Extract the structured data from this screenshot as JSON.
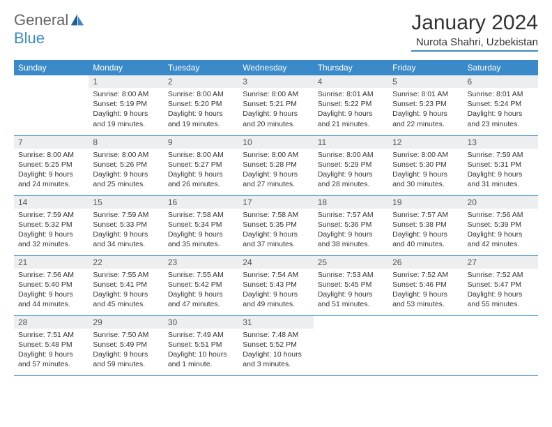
{
  "logo": {
    "text1": "General",
    "text2": "Blue"
  },
  "title": "January 2024",
  "location": "Nurota Shahri, Uzbekistan",
  "colors": {
    "header_bg": "#3a8ac9",
    "header_fg": "#ffffff",
    "daynum_bg": "#eceeef",
    "rule": "#3a8ac9",
    "logo_gray": "#666666"
  },
  "weekdays": [
    "Sunday",
    "Monday",
    "Tuesday",
    "Wednesday",
    "Thursday",
    "Friday",
    "Saturday"
  ],
  "weeks": [
    [
      null,
      {
        "n": "1",
        "sr": "8:00 AM",
        "ss": "5:19 PM",
        "dl": "9 hours and 19 minutes."
      },
      {
        "n": "2",
        "sr": "8:00 AM",
        "ss": "5:20 PM",
        "dl": "9 hours and 19 minutes."
      },
      {
        "n": "3",
        "sr": "8:00 AM",
        "ss": "5:21 PM",
        "dl": "9 hours and 20 minutes."
      },
      {
        "n": "4",
        "sr": "8:01 AM",
        "ss": "5:22 PM",
        "dl": "9 hours and 21 minutes."
      },
      {
        "n": "5",
        "sr": "8:01 AM",
        "ss": "5:23 PM",
        "dl": "9 hours and 22 minutes."
      },
      {
        "n": "6",
        "sr": "8:01 AM",
        "ss": "5:24 PM",
        "dl": "9 hours and 23 minutes."
      }
    ],
    [
      {
        "n": "7",
        "sr": "8:00 AM",
        "ss": "5:25 PM",
        "dl": "9 hours and 24 minutes."
      },
      {
        "n": "8",
        "sr": "8:00 AM",
        "ss": "5:26 PM",
        "dl": "9 hours and 25 minutes."
      },
      {
        "n": "9",
        "sr": "8:00 AM",
        "ss": "5:27 PM",
        "dl": "9 hours and 26 minutes."
      },
      {
        "n": "10",
        "sr": "8:00 AM",
        "ss": "5:28 PM",
        "dl": "9 hours and 27 minutes."
      },
      {
        "n": "11",
        "sr": "8:00 AM",
        "ss": "5:29 PM",
        "dl": "9 hours and 28 minutes."
      },
      {
        "n": "12",
        "sr": "8:00 AM",
        "ss": "5:30 PM",
        "dl": "9 hours and 30 minutes."
      },
      {
        "n": "13",
        "sr": "7:59 AM",
        "ss": "5:31 PM",
        "dl": "9 hours and 31 minutes."
      }
    ],
    [
      {
        "n": "14",
        "sr": "7:59 AM",
        "ss": "5:32 PM",
        "dl": "9 hours and 32 minutes."
      },
      {
        "n": "15",
        "sr": "7:59 AM",
        "ss": "5:33 PM",
        "dl": "9 hours and 34 minutes."
      },
      {
        "n": "16",
        "sr": "7:58 AM",
        "ss": "5:34 PM",
        "dl": "9 hours and 35 minutes."
      },
      {
        "n": "17",
        "sr": "7:58 AM",
        "ss": "5:35 PM",
        "dl": "9 hours and 37 minutes."
      },
      {
        "n": "18",
        "sr": "7:57 AM",
        "ss": "5:36 PM",
        "dl": "9 hours and 38 minutes."
      },
      {
        "n": "19",
        "sr": "7:57 AM",
        "ss": "5:38 PM",
        "dl": "9 hours and 40 minutes."
      },
      {
        "n": "20",
        "sr": "7:56 AM",
        "ss": "5:39 PM",
        "dl": "9 hours and 42 minutes."
      }
    ],
    [
      {
        "n": "21",
        "sr": "7:56 AM",
        "ss": "5:40 PM",
        "dl": "9 hours and 44 minutes."
      },
      {
        "n": "22",
        "sr": "7:55 AM",
        "ss": "5:41 PM",
        "dl": "9 hours and 45 minutes."
      },
      {
        "n": "23",
        "sr": "7:55 AM",
        "ss": "5:42 PM",
        "dl": "9 hours and 47 minutes."
      },
      {
        "n": "24",
        "sr": "7:54 AM",
        "ss": "5:43 PM",
        "dl": "9 hours and 49 minutes."
      },
      {
        "n": "25",
        "sr": "7:53 AM",
        "ss": "5:45 PM",
        "dl": "9 hours and 51 minutes."
      },
      {
        "n": "26",
        "sr": "7:52 AM",
        "ss": "5:46 PM",
        "dl": "9 hours and 53 minutes."
      },
      {
        "n": "27",
        "sr": "7:52 AM",
        "ss": "5:47 PM",
        "dl": "9 hours and 55 minutes."
      }
    ],
    [
      {
        "n": "28",
        "sr": "7:51 AM",
        "ss": "5:48 PM",
        "dl": "9 hours and 57 minutes."
      },
      {
        "n": "29",
        "sr": "7:50 AM",
        "ss": "5:49 PM",
        "dl": "9 hours and 59 minutes."
      },
      {
        "n": "30",
        "sr": "7:49 AM",
        "ss": "5:51 PM",
        "dl": "10 hours and 1 minute."
      },
      {
        "n": "31",
        "sr": "7:48 AM",
        "ss": "5:52 PM",
        "dl": "10 hours and 3 minutes."
      },
      null,
      null,
      null
    ]
  ],
  "labels": {
    "sunrise": "Sunrise:",
    "sunset": "Sunset:",
    "daylight": "Daylight:"
  }
}
